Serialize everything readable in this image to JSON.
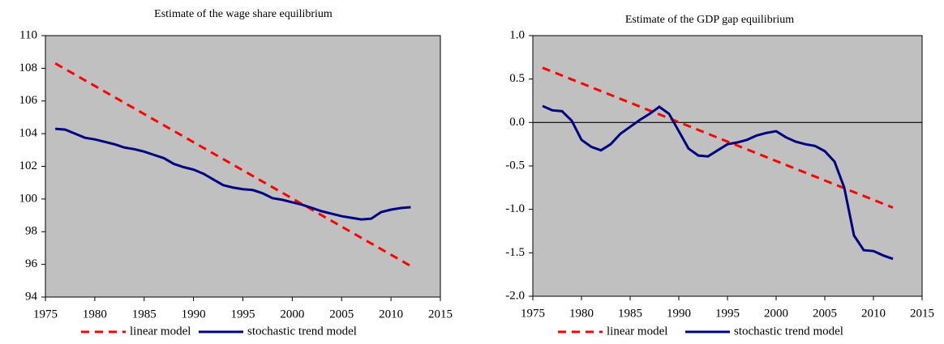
{
  "chart_data": [
    {
      "type": "line",
      "title": "Estimate of the wage share  equilibrium",
      "x": [
        1976,
        1977,
        1978,
        1979,
        1980,
        1981,
        1982,
        1983,
        1984,
        1985,
        1986,
        1987,
        1988,
        1989,
        1990,
        1991,
        1992,
        1993,
        1994,
        1995,
        1996,
        1997,
        1998,
        1999,
        2000,
        2001,
        2002,
        2003,
        2004,
        2005,
        2006,
        2007,
        2008,
        2009,
        2010,
        2011,
        2012
      ],
      "xlim": [
        1975,
        2015
      ],
      "xticks": [
        1975,
        1980,
        1985,
        1990,
        1995,
        2000,
        2005,
        2010,
        2015
      ],
      "ylim": [
        94,
        110
      ],
      "yticks": [
        94,
        96,
        98,
        100,
        102,
        104,
        106,
        108,
        110
      ],
      "zero_line": false,
      "background": "#c0c0c0",
      "series": [
        {
          "name": "linear model",
          "color": "#ff0000",
          "style": "dashed",
          "x": [
            1976,
            2012
          ],
          "values": [
            108.3,
            95.9
          ]
        },
        {
          "name": "stochastic trend model",
          "color": "#000080",
          "style": "solid",
          "values": [
            104.3,
            104.25,
            104.0,
            103.75,
            103.65,
            103.5,
            103.35,
            103.15,
            103.05,
            102.9,
            102.7,
            102.5,
            102.15,
            101.95,
            101.8,
            101.55,
            101.2,
            100.85,
            100.7,
            100.6,
            100.55,
            100.35,
            100.05,
            99.95,
            99.8,
            99.65,
            99.45,
            99.25,
            99.1,
            98.95,
            98.85,
            98.75,
            98.8,
            99.2,
            99.35,
            99.45,
            99.5
          ]
        }
      ]
    },
    {
      "type": "line",
      "title": "Estimate of the GDP gap  equilibrium",
      "x": [
        1976,
        1977,
        1978,
        1979,
        1980,
        1981,
        1982,
        1983,
        1984,
        1985,
        1986,
        1987,
        1988,
        1989,
        1990,
        1991,
        1992,
        1993,
        1994,
        1995,
        1996,
        1997,
        1998,
        1999,
        2000,
        2001,
        2002,
        2003,
        2004,
        2005,
        2006,
        2007,
        2008,
        2009,
        2010,
        2011,
        2012
      ],
      "xlim": [
        1975,
        2015
      ],
      "xticks": [
        1975,
        1980,
        1985,
        1990,
        1995,
        2000,
        2005,
        2010,
        2015
      ],
      "ylim": [
        -2,
        1
      ],
      "yticks": [
        {
          "value": -2,
          "label": "-2.0"
        },
        -1.5,
        {
          "value": -1,
          "label": "-1.0"
        },
        -0.5,
        {
          "value": 0,
          "label": "0.0"
        },
        0.5,
        {
          "value": 1,
          "label": "1.0"
        }
      ],
      "zero_line": true,
      "background": "#c0c0c0",
      "series": [
        {
          "name": "linear model",
          "color": "#ff0000",
          "style": "dashed",
          "x": [
            1976,
            2012
          ],
          "values": [
            0.63,
            -0.98
          ]
        },
        {
          "name": "stochastic trend model",
          "color": "#000080",
          "style": "solid",
          "values": [
            0.19,
            0.14,
            0.13,
            0.02,
            -0.2,
            -0.28,
            -0.32,
            -0.25,
            -0.13,
            -0.05,
            0.03,
            0.1,
            0.18,
            0.1,
            -0.1,
            -0.3,
            -0.38,
            -0.39,
            -0.32,
            -0.25,
            -0.23,
            -0.2,
            -0.15,
            -0.12,
            -0.1,
            -0.17,
            -0.22,
            -0.25,
            -0.27,
            -0.33,
            -0.45,
            -0.75,
            -1.3,
            -1.47,
            -1.48,
            -1.53,
            -1.57
          ]
        }
      ]
    }
  ]
}
